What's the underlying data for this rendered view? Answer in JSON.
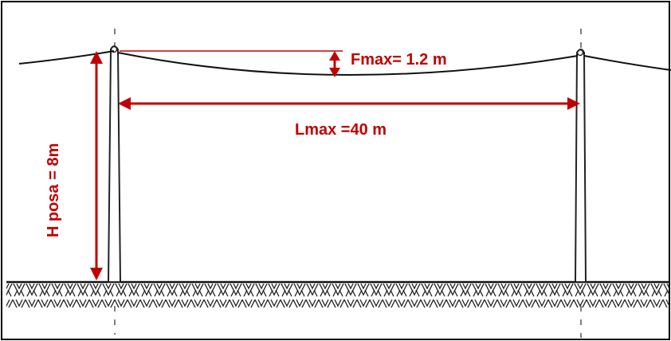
{
  "labels": {
    "sag": "Fmax= 1.2 m",
    "span": "Lmax =40 m",
    "height": "H posa = 8m"
  },
  "colors": {
    "annotation": "#c00000",
    "line": "#111111",
    "frame": "#000000",
    "background": "#ffffff"
  }
}
